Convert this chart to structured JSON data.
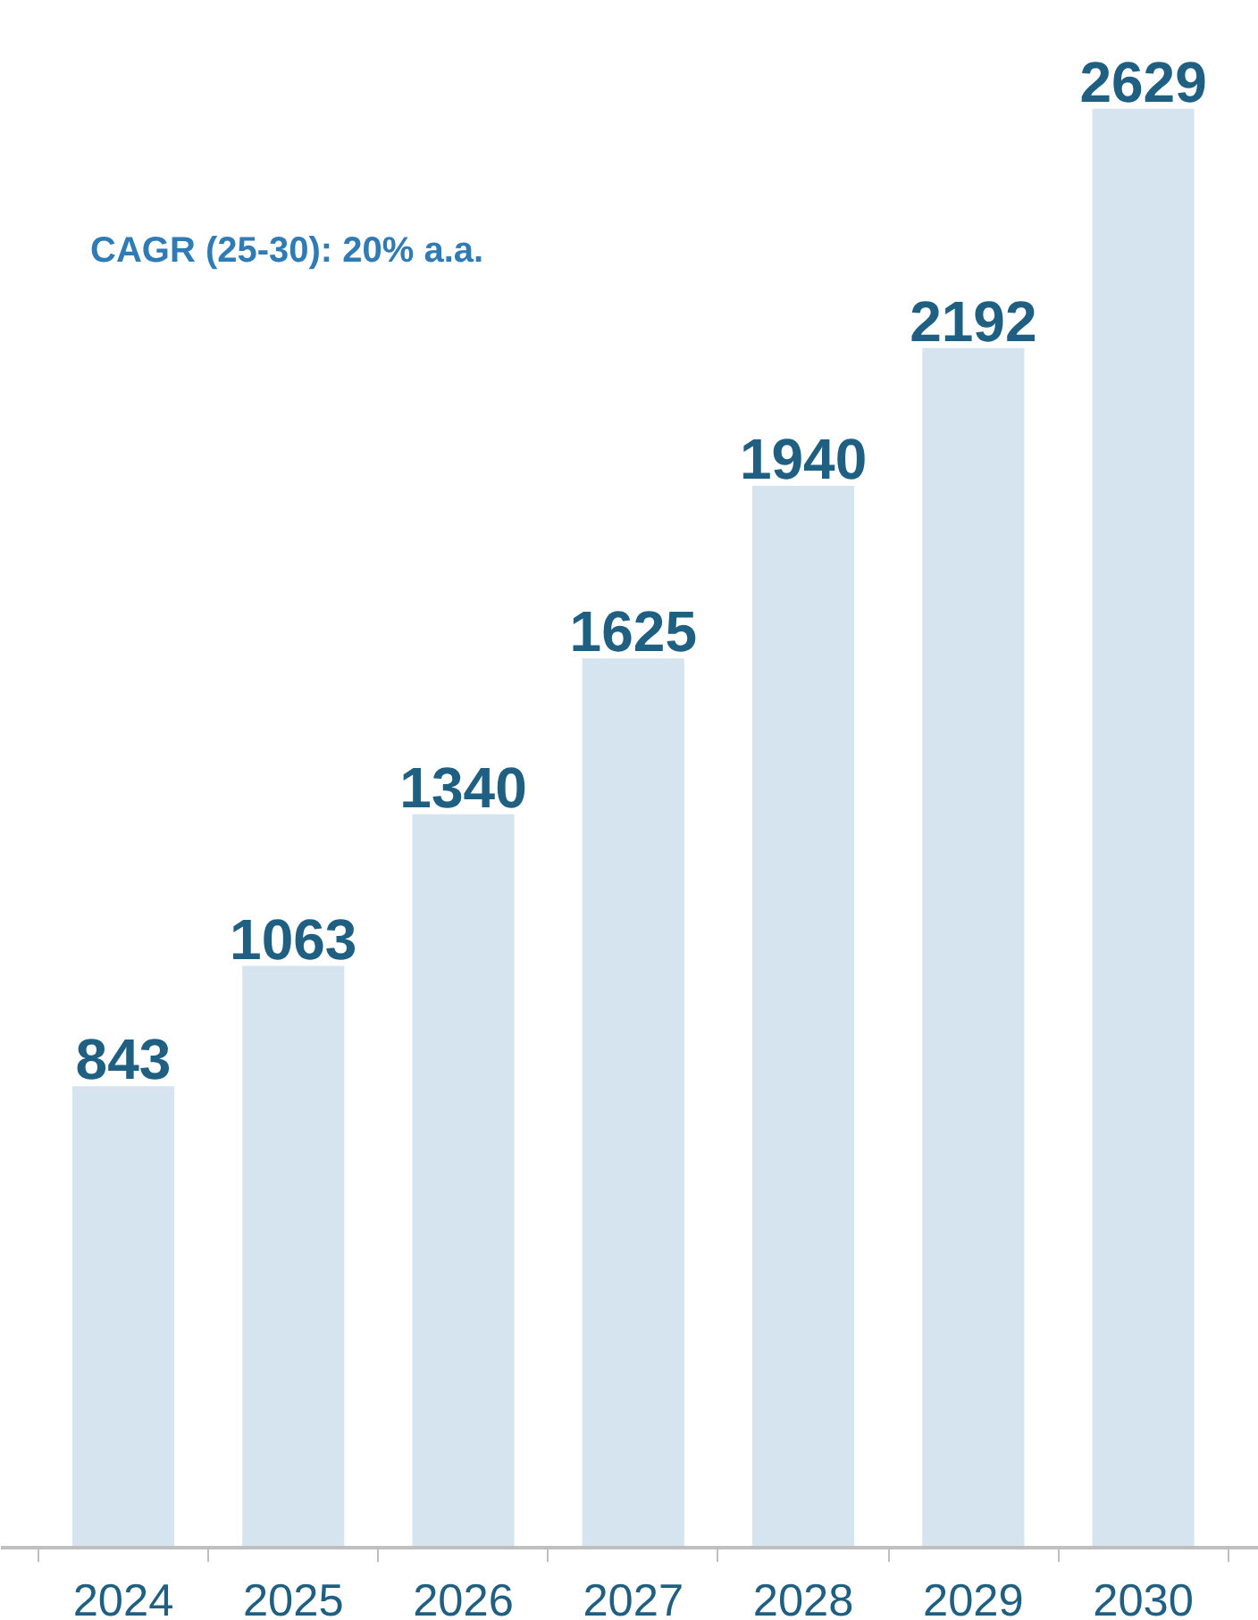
{
  "chart_data": {
    "type": "bar",
    "categories": [
      "2024",
      "2025",
      "2026",
      "2027",
      "2028",
      "2029",
      "2030"
    ],
    "values": [
      843,
      1063,
      1340,
      1625,
      1940,
      2192,
      2629
    ],
    "color": "#d6e4f0",
    "data_labels": true,
    "annotations": [
      "CAGR (25-30): 20% a.a."
    ]
  }
}
